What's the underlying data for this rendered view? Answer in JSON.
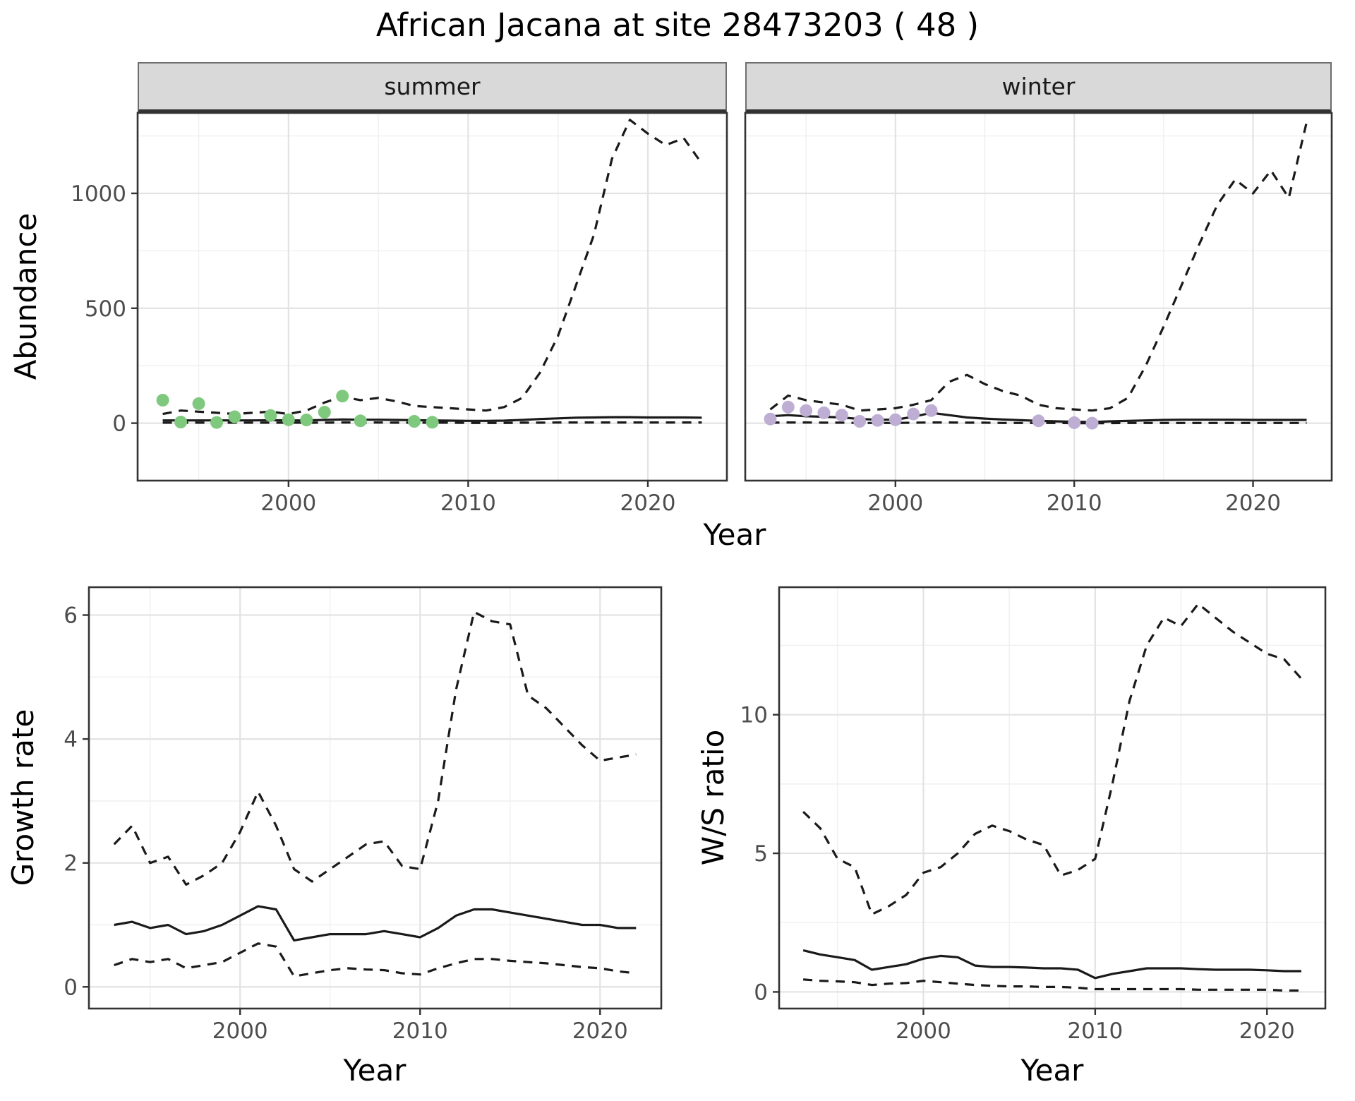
{
  "title": "African Jacana at site 28473203 ( 48 )",
  "colors": {
    "line": "#1a1a1a",
    "summer_points": "#7fc97f",
    "winter_points": "#beaed4",
    "strip_bg": "#d9d9d9",
    "grid_major": "#e3e3e3",
    "grid_minor": "#f1f1f1",
    "panel_border": "#333333",
    "tick_text": "#4d4d4d"
  },
  "chart_data": [
    {
      "id": "abundance-summer",
      "type": "line",
      "facet_label": "summer",
      "xlabel": "Year",
      "ylabel": "Abundance",
      "xlim": [
        1991.6,
        2024.4
      ],
      "ylim": [
        -250,
        1350
      ],
      "xticks": [
        2000,
        2010,
        2020
      ],
      "yticks": [
        0,
        500,
        1000
      ],
      "xminor": [
        1995,
        2005,
        2015
      ],
      "yminor": [
        250,
        750,
        1250
      ],
      "show_yticklabels": true,
      "x": [
        1993,
        1994,
        1995,
        1996,
        1997,
        1998,
        1999,
        2000,
        2001,
        2002,
        2003,
        2004,
        2005,
        2006,
        2007,
        2008,
        2009,
        2010,
        2011,
        2012,
        2013,
        2014,
        2015,
        2016,
        2017,
        2018,
        2019,
        2020,
        2021,
        2022,
        2023
      ],
      "series": [
        {
          "name": "upper_credible",
          "style": "dashed",
          "values": [
            40,
            55,
            50,
            45,
            40,
            45,
            50,
            40,
            55,
            90,
            115,
            100,
            110,
            95,
            75,
            70,
            65,
            60,
            55,
            70,
            110,
            220,
            380,
            600,
            820,
            1150,
            1320,
            1260,
            1210,
            1240,
            1130
          ]
        },
        {
          "name": "median",
          "style": "solid",
          "values": [
            12,
            12,
            12,
            12,
            12,
            12,
            13,
            12,
            12,
            14,
            16,
            15,
            15,
            14,
            13,
            12,
            11,
            10,
            10,
            11,
            14,
            18,
            21,
            24,
            25,
            26,
            26,
            25,
            25,
            25,
            24
          ]
        },
        {
          "name": "lower_credible",
          "style": "dashed",
          "values": [
            2,
            2,
            2,
            2,
            2,
            2,
            2,
            2,
            2,
            2,
            3,
            3,
            3,
            2,
            2,
            2,
            2,
            1,
            1,
            1,
            2,
            2,
            3,
            3,
            3,
            3,
            3,
            3,
            3,
            3,
            3
          ]
        }
      ],
      "points": {
        "name": "observed_counts_summer",
        "color": "#7fc97f",
        "x": [
          1993,
          1994,
          1995,
          1996,
          1997,
          1999,
          2000,
          2001,
          2002,
          2003,
          2004,
          2007,
          2008
        ],
        "y": [
          100,
          5,
          85,
          3,
          28,
          33,
          15,
          14,
          48,
          118,
          10,
          8,
          4
        ]
      }
    },
    {
      "id": "abundance-winter",
      "type": "line",
      "facet_label": "winter",
      "xlabel": "Year",
      "ylabel": "Abundance",
      "xlim": [
        1991.6,
        2024.4
      ],
      "ylim": [
        -250,
        1350
      ],
      "xticks": [
        2000,
        2010,
        2020
      ],
      "yticks": [
        0,
        500,
        1000
      ],
      "xminor": [
        1995,
        2005,
        2015
      ],
      "yminor": [
        250,
        750,
        1250
      ],
      "show_yticklabels": false,
      "x": [
        1993,
        1994,
        1995,
        1996,
        1997,
        1998,
        1999,
        2000,
        2001,
        2002,
        2003,
        2004,
        2005,
        2006,
        2007,
        2008,
        2009,
        2010,
        2011,
        2012,
        2013,
        2014,
        2015,
        2016,
        2017,
        2018,
        2019,
        2020,
        2021,
        2022,
        2023
      ],
      "series": [
        {
          "name": "upper_credible",
          "style": "dashed",
          "values": [
            60,
            120,
            100,
            90,
            80,
            55,
            60,
            65,
            80,
            100,
            180,
            210,
            170,
            140,
            120,
            80,
            65,
            60,
            55,
            65,
            110,
            250,
            420,
            600,
            780,
            950,
            1060,
            1000,
            1100,
            980,
            1310
          ]
        },
        {
          "name": "median",
          "style": "solid",
          "values": [
            30,
            35,
            30,
            28,
            25,
            18,
            15,
            15,
            28,
            45,
            35,
            25,
            20,
            16,
            13,
            10,
            8,
            6,
            5,
            8,
            10,
            12,
            14,
            15,
            15,
            15,
            15,
            14,
            14,
            14,
            14
          ]
        },
        {
          "name": "lower_credible",
          "style": "dashed",
          "values": [
            2,
            3,
            3,
            2,
            2,
            1,
            1,
            1,
            2,
            3,
            3,
            2,
            2,
            1,
            1,
            1,
            1,
            0,
            0,
            0,
            1,
            1,
            1,
            1,
            1,
            1,
            1,
            1,
            1,
            1,
            1
          ]
        }
      ],
      "points": {
        "name": "observed_counts_winter",
        "color": "#beaed4",
        "x": [
          1993,
          1994,
          1995,
          1996,
          1997,
          1998,
          1999,
          2000,
          2001,
          2002,
          2008,
          2010,
          2011
        ],
        "y": [
          18,
          70,
          55,
          45,
          35,
          8,
          12,
          15,
          40,
          55,
          10,
          2,
          0
        ]
      }
    },
    {
      "id": "growth-rate",
      "type": "line",
      "xlabel": "Year",
      "ylabel": "Growth rate",
      "xlim": [
        1991.6,
        2023.4
      ],
      "ylim": [
        -0.35,
        6.45
      ],
      "xticks": [
        2000,
        2010,
        2020
      ],
      "yticks": [
        0,
        2,
        4,
        6
      ],
      "xminor": [
        1995,
        2005,
        2015
      ],
      "yminor": [
        1,
        3,
        5
      ],
      "show_yticklabels": true,
      "x": [
        1993,
        1994,
        1995,
        1996,
        1997,
        1998,
        1999,
        2000,
        2001,
        2002,
        2003,
        2004,
        2005,
        2006,
        2007,
        2008,
        2009,
        2010,
        2011,
        2012,
        2013,
        2014,
        2015,
        2016,
        2017,
        2018,
        2019,
        2020,
        2021,
        2022
      ],
      "series": [
        {
          "name": "upper_credible",
          "style": "dashed",
          "values": [
            2.3,
            2.6,
            2.0,
            2.1,
            1.65,
            1.8,
            2.0,
            2.5,
            3.15,
            2.6,
            1.9,
            1.7,
            1.9,
            2.1,
            2.3,
            2.35,
            1.95,
            1.9,
            3.0,
            4.8,
            6.05,
            5.9,
            5.85,
            4.7,
            4.5,
            4.2,
            3.9,
            3.65,
            3.7,
            3.75
          ]
        },
        {
          "name": "median",
          "style": "solid",
          "values": [
            1.0,
            1.05,
            0.95,
            1.0,
            0.85,
            0.9,
            1.0,
            1.15,
            1.3,
            1.25,
            0.75,
            0.8,
            0.85,
            0.85,
            0.85,
            0.9,
            0.85,
            0.8,
            0.95,
            1.15,
            1.25,
            1.25,
            1.2,
            1.15,
            1.1,
            1.05,
            1.0,
            1.0,
            0.95,
            0.95
          ]
        },
        {
          "name": "lower_credible",
          "style": "dashed",
          "values": [
            0.35,
            0.45,
            0.4,
            0.45,
            0.3,
            0.35,
            0.4,
            0.55,
            0.7,
            0.65,
            0.17,
            0.22,
            0.27,
            0.3,
            0.28,
            0.27,
            0.22,
            0.2,
            0.3,
            0.38,
            0.45,
            0.45,
            0.42,
            0.4,
            0.38,
            0.35,
            0.32,
            0.3,
            0.25,
            0.22
          ]
        }
      ]
    },
    {
      "id": "ws-ratio",
      "type": "line",
      "xlabel": "Year",
      "ylabel": "W/S ratio",
      "xlim": [
        1991.6,
        2023.4
      ],
      "ylim": [
        -0.6,
        14.6
      ],
      "xticks": [
        2000,
        2010,
        2020
      ],
      "yticks": [
        0,
        5,
        10
      ],
      "xminor": [
        1995,
        2005,
        2015
      ],
      "yminor": [
        2.5,
        7.5,
        12.5
      ],
      "show_yticklabels": true,
      "x": [
        1993,
        1994,
        1995,
        1996,
        1997,
        1998,
        1999,
        2000,
        2001,
        2002,
        2003,
        2004,
        2005,
        2006,
        2007,
        2008,
        2009,
        2010,
        2011,
        2012,
        2013,
        2014,
        2015,
        2016,
        2017,
        2018,
        2019,
        2020,
        2021,
        2022
      ],
      "series": [
        {
          "name": "upper_credible",
          "style": "dashed",
          "values": [
            6.5,
            5.9,
            4.8,
            4.5,
            2.8,
            3.1,
            3.5,
            4.3,
            4.5,
            5.0,
            5.7,
            6.0,
            5.8,
            5.5,
            5.3,
            4.2,
            4.4,
            4.8,
            7.5,
            10.5,
            12.5,
            13.5,
            13.2,
            14.0,
            13.5,
            13.0,
            12.6,
            12.2,
            12.0,
            11.3
          ]
        },
        {
          "name": "median",
          "style": "solid",
          "values": [
            1.5,
            1.35,
            1.25,
            1.15,
            0.8,
            0.9,
            1.0,
            1.2,
            1.3,
            1.25,
            0.95,
            0.9,
            0.9,
            0.88,
            0.85,
            0.85,
            0.8,
            0.5,
            0.65,
            0.75,
            0.85,
            0.85,
            0.85,
            0.82,
            0.8,
            0.8,
            0.8,
            0.78,
            0.75,
            0.75
          ]
        },
        {
          "name": "lower_credible",
          "style": "dashed",
          "values": [
            0.45,
            0.4,
            0.38,
            0.35,
            0.25,
            0.3,
            0.32,
            0.4,
            0.35,
            0.3,
            0.25,
            0.22,
            0.2,
            0.2,
            0.18,
            0.18,
            0.15,
            0.1,
            0.1,
            0.1,
            0.1,
            0.1,
            0.1,
            0.08,
            0.08,
            0.08,
            0.08,
            0.08,
            0.05,
            0.05
          ]
        }
      ]
    }
  ]
}
